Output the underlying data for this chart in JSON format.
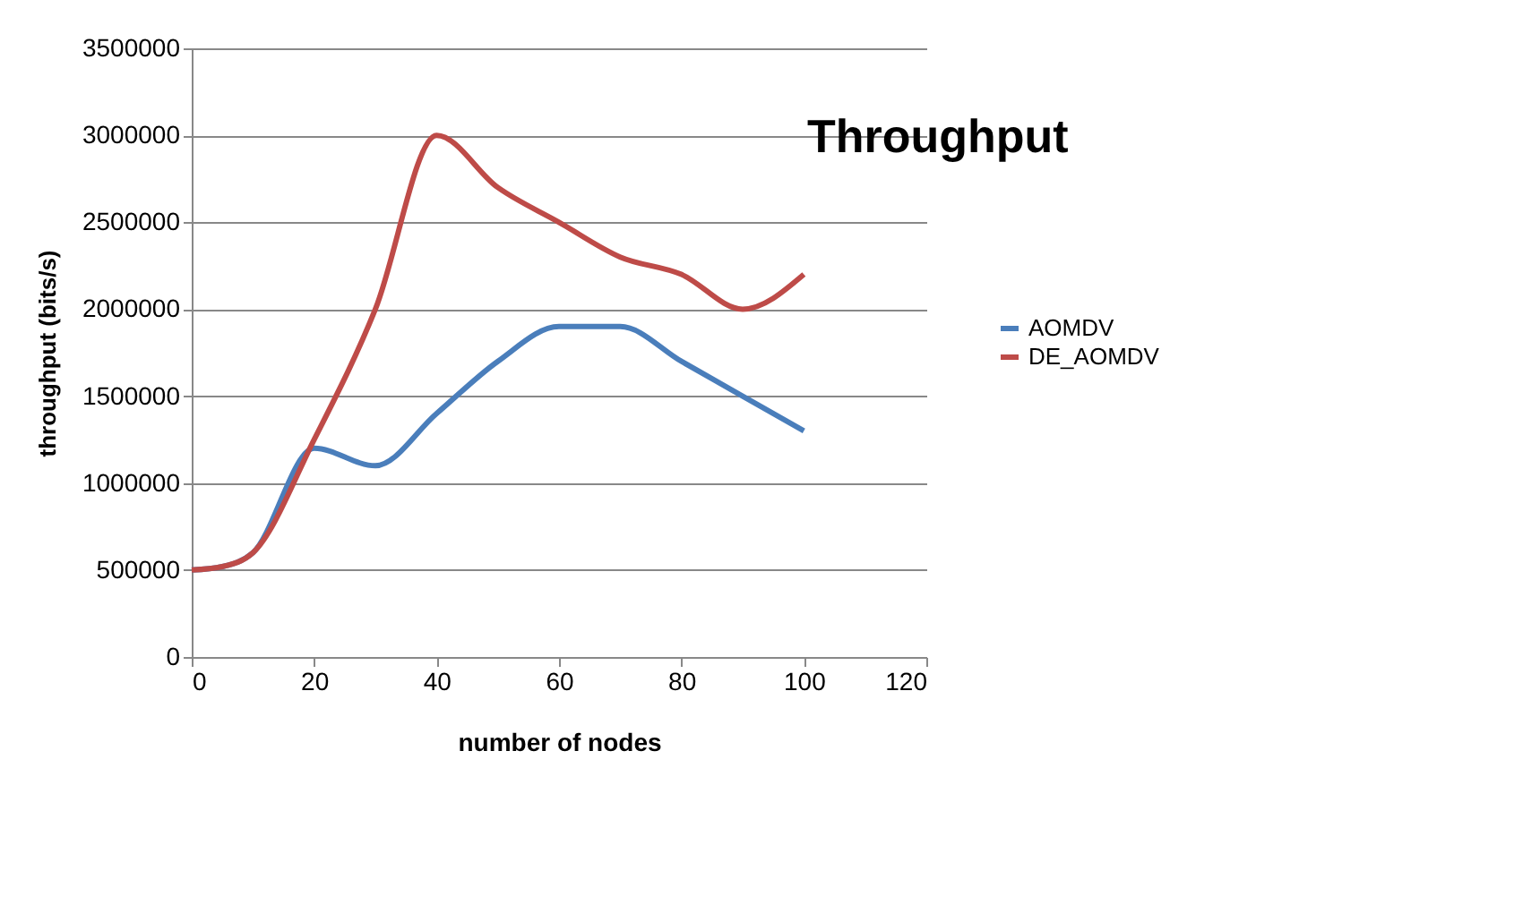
{
  "chart_data": {
    "type": "line",
    "title": "Throughput",
    "xlabel": "number of nodes",
    "ylabel": "throughput (bits/s)",
    "x": [
      0,
      5,
      10,
      20,
      30,
      40,
      50,
      60,
      70,
      80,
      90,
      100
    ],
    "series": [
      {
        "name": "AOMDV",
        "color": "#4a7ebb",
        "values": [
          500000,
          520000,
          600000,
          1200000,
          1100000,
          1400000,
          1700000,
          1900000,
          1900000,
          1700000,
          1500000,
          1300000
        ]
      },
      {
        "name": "DE_AOMDV",
        "color": "#be4b48",
        "values": [
          500000,
          520000,
          600000,
          1250000,
          2000000,
          3000000,
          2700000,
          2500000,
          2300000,
          2200000,
          2000000,
          2200000
        ]
      }
    ],
    "xlim": [
      0,
      120
    ],
    "xticks": [
      0,
      20,
      40,
      60,
      80,
      100,
      120
    ],
    "ylim": [
      0,
      3500000
    ],
    "yticks": [
      0,
      500000,
      1000000,
      1500000,
      2000000,
      2500000,
      3000000,
      3500000
    ],
    "grid": "y",
    "legend": "right",
    "marker": "none",
    "line_style": "solid"
  }
}
